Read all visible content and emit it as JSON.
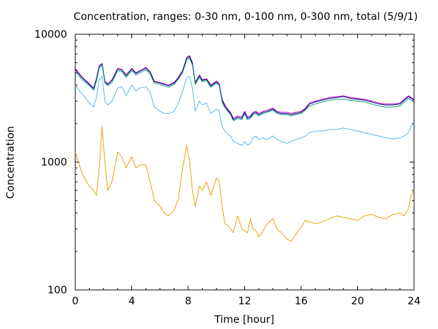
{
  "chart_data": {
    "type": "line",
    "title": "Concentration, ranges: 0-30 nm, 0-100 nm, 0-300 nm, total (5/9/1)",
    "xlabel": "Time [hour]",
    "ylabel": "Concentration",
    "xlim": [
      0,
      24
    ],
    "ylim": [
      100,
      10000
    ],
    "yscale": "log",
    "grid": false,
    "legend": "none",
    "x_ticks": [
      "0",
      "4",
      "8",
      "12",
      "16",
      "20",
      "24"
    ],
    "x_tick_values": [
      0,
      4,
      8,
      12,
      16,
      20,
      24
    ],
    "y_ticks": [
      "100",
      "1000",
      "10000"
    ],
    "y_tick_values": [
      100,
      1000,
      10000
    ],
    "x": [
      0,
      0.5,
      1,
      1.3,
      1.5,
      1.7,
      1.9,
      2.1,
      2.3,
      2.6,
      3,
      3.3,
      3.6,
      4,
      4.3,
      4.6,
      5,
      5.3,
      5.6,
      6,
      6.3,
      6.6,
      7,
      7.3,
      7.6,
      7.9,
      8.1,
      8.3,
      8.5,
      8.8,
      9,
      9.3,
      9.6,
      10,
      10.2,
      10.4,
      10.6,
      10.8,
      11,
      11.2,
      11.5,
      11.8,
      12,
      12.2,
      12.4,
      12.6,
      12.8,
      13,
      13.3,
      13.6,
      14,
      14.3,
      14.6,
      15,
      15.3,
      15.6,
      16,
      16.3,
      16.6,
      17,
      17.5,
      18,
      18.5,
      19,
      19.5,
      20,
      20.5,
      21,
      21.5,
      22,
      22.5,
      23,
      23.3,
      23.6,
      23.8,
      24
    ],
    "series": [
      {
        "color": "#cc00cc",
        "values": [
          5400,
          4600,
          4100,
          3800,
          4500,
          5700,
          5900,
          4300,
          4100,
          4400,
          5400,
          5300,
          4800,
          5400,
          5000,
          5200,
          5500,
          5100,
          4300,
          4200,
          4100,
          4000,
          4200,
          4600,
          5200,
          6600,
          6800,
          6000,
          4200,
          4800,
          4400,
          4500,
          4000,
          4300,
          4100,
          3100,
          2800,
          2600,
          2450,
          2200,
          2300,
          2250,
          2500,
          2250,
          2300,
          2450,
          2500,
          2400,
          2500,
          2550,
          2650,
          2500,
          2450,
          2450,
          2400,
          2450,
          2500,
          2650,
          2900,
          3000,
          3100,
          3200,
          3250,
          3300,
          3200,
          3150,
          3100,
          3000,
          2900,
          2850,
          2850,
          2900,
          3100,
          3300,
          3200,
          3100
        ]
      },
      {
        "color": "#000080",
        "values": [
          5300,
          4550,
          4050,
          3750,
          4450,
          5650,
          5850,
          4250,
          4050,
          4350,
          5350,
          5250,
          4750,
          5350,
          4950,
          5150,
          5450,
          5050,
          4250,
          4150,
          4050,
          3950,
          4150,
          4550,
          5150,
          6500,
          6700,
          5900,
          4150,
          4750,
          4350,
          4450,
          3950,
          4250,
          4050,
          3050,
          2750,
          2550,
          2400,
          2150,
          2250,
          2200,
          2450,
          2200,
          2250,
          2400,
          2450,
          2350,
          2450,
          2500,
          2600,
          2450,
          2400,
          2400,
          2350,
          2400,
          2450,
          2600,
          2850,
          2950,
          3050,
          3150,
          3200,
          3250,
          3150,
          3100,
          3050,
          2950,
          2850,
          2800,
          2800,
          2850,
          3050,
          3250,
          3150,
          3050
        ]
      },
      {
        "color": "#009e73",
        "values": [
          5100,
          4400,
          3950,
          3650,
          4300,
          5450,
          5700,
          4150,
          3950,
          4200,
          5200,
          5100,
          4600,
          5200,
          4800,
          5000,
          5300,
          4900,
          4150,
          4050,
          3950,
          3850,
          4050,
          4450,
          5000,
          6300,
          6500,
          5750,
          4050,
          4600,
          4250,
          4350,
          3850,
          4150,
          3950,
          2950,
          2650,
          2500,
          2350,
          2100,
          2200,
          2150,
          2400,
          2150,
          2200,
          2350,
          2400,
          2300,
          2400,
          2450,
          2550,
          2400,
          2350,
          2350,
          2300,
          2350,
          2400,
          2550,
          2750,
          2850,
          2950,
          3050,
          3100,
          3100,
          3050,
          3000,
          2950,
          2850,
          2750,
          2700,
          2700,
          2750,
          2950,
          3150,
          3050,
          2950
        ]
      },
      {
        "color": "#56b4e9",
        "values": [
          4000,
          3400,
          2900,
          2700,
          3200,
          4400,
          4700,
          3000,
          2800,
          3000,
          3800,
          3900,
          3300,
          4000,
          3600,
          3800,
          3900,
          3500,
          2700,
          2500,
          2400,
          2400,
          2500,
          2900,
          3600,
          4600,
          4700,
          3800,
          2500,
          3000,
          2800,
          2900,
          2400,
          2600,
          2500,
          1900,
          1750,
          1650,
          1600,
          1450,
          1400,
          1350,
          1450,
          1350,
          1400,
          1550,
          1600,
          1500,
          1550,
          1500,
          1600,
          1500,
          1450,
          1400,
          1450,
          1500,
          1550,
          1600,
          1700,
          1750,
          1750,
          1800,
          1800,
          1850,
          1800,
          1750,
          1700,
          1650,
          1600,
          1550,
          1520,
          1550,
          1600,
          1700,
          1900,
          2000
        ]
      },
      {
        "color": "#e69f00",
        "values": [
          1200,
          800,
          650,
          600,
          550,
          900,
          1900,
          1000,
          600,
          700,
          1200,
          1100,
          900,
          1100,
          900,
          950,
          950,
          700,
          500,
          450,
          400,
          380,
          420,
          520,
          900,
          1350,
          1000,
          600,
          450,
          650,
          600,
          700,
          550,
          750,
          700,
          450,
          330,
          320,
          300,
          280,
          380,
          300,
          290,
          280,
          360,
          300,
          290,
          260,
          290,
          330,
          360,
          300,
          280,
          250,
          240,
          270,
          310,
          350,
          340,
          330,
          340,
          360,
          380,
          370,
          360,
          350,
          380,
          390,
          370,
          360,
          390,
          400,
          380,
          430,
          550,
          600
        ]
      }
    ]
  }
}
